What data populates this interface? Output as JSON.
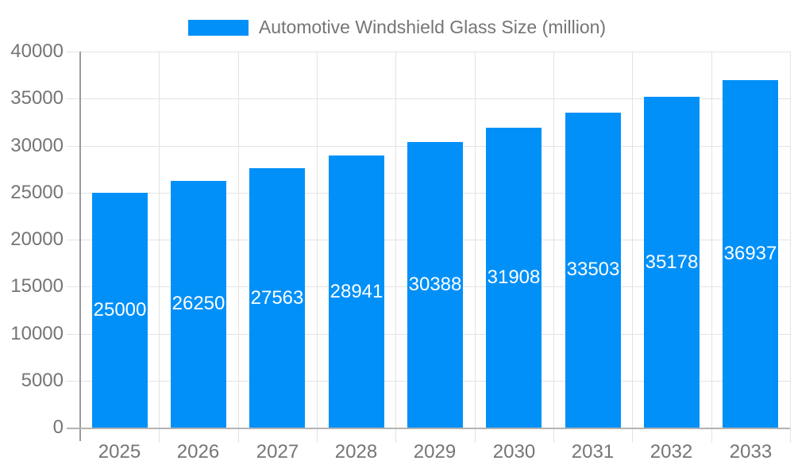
{
  "legend": {
    "label": "Automotive Windshield Glass Size (million)"
  },
  "chart_data": {
    "type": "bar",
    "title": "Automotive Windshield Glass Size (million)",
    "categories": [
      "2025",
      "2026",
      "2027",
      "2028",
      "2029",
      "2030",
      "2031",
      "2032",
      "2033"
    ],
    "values": [
      25000,
      26250,
      27563,
      28941,
      30388,
      31908,
      33503,
      35178,
      36937
    ],
    "xlabel": "",
    "ylabel": "",
    "ylim": [
      0,
      40000
    ],
    "yticks": [
      0,
      5000,
      10000,
      15000,
      20000,
      25000,
      30000,
      35000,
      40000
    ],
    "grid": true,
    "legend_position": "top-center",
    "bar_color": "#0190F8",
    "value_label_color": "#FFFFFF",
    "axis_text_color": "#757575",
    "gridline_color": "#E3E3E3"
  }
}
